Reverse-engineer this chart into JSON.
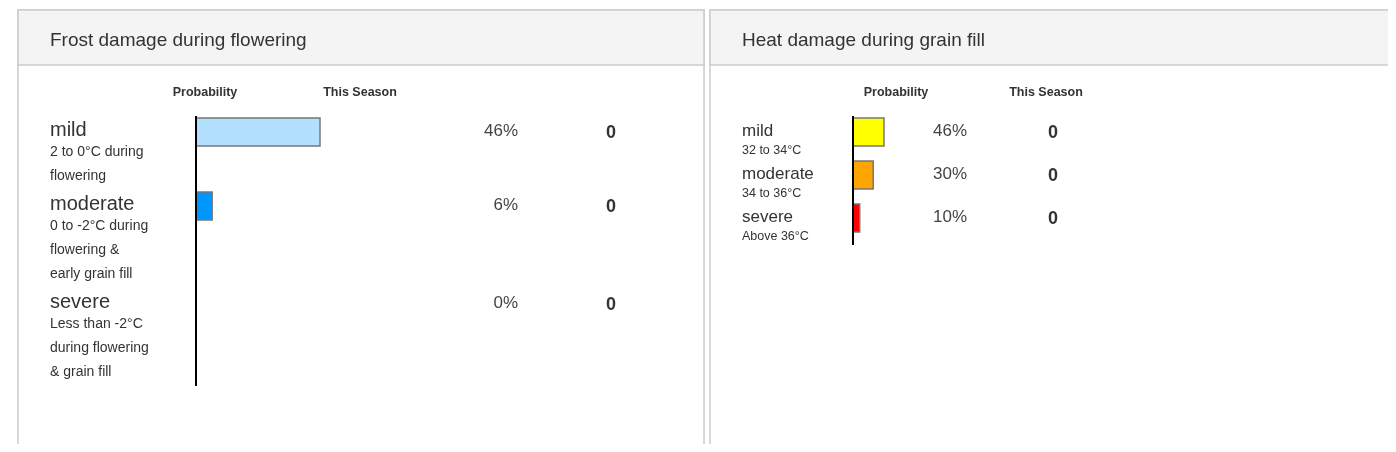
{
  "chart_data": [
    {
      "type": "bar",
      "orientation": "horizontal",
      "title": "Frost damage during flowering",
      "categories": [
        "mild\n2 to 0°C during flowering",
        "moderate\n0 to -2°C during flowering & early grain fill",
        "severe\nLess than -2°C during flowering & grain fill"
      ],
      "series": [
        {
          "name": "Probability",
          "colors": [
            "#b3e0ff",
            "#0096ff",
            "#0096ff"
          ],
          "values": [
            46,
            6,
            0
          ],
          "value_labels": [
            "46%",
            "6%",
            "0%"
          ]
        },
        {
          "name": "This Season",
          "color": "#333333",
          "values": [
            0,
            0,
            0
          ],
          "value_labels": [
            "0",
            "0",
            "0"
          ]
        }
      ]
    },
    {
      "type": "bar",
      "orientation": "horizontal",
      "title": "Heat damage during grain fill",
      "categories": [
        "mild\n32 to 34°C",
        "moderate\n34 to 36°C",
        "severe\nAbove 36°C"
      ],
      "series": [
        {
          "name": "Probability",
          "colors": [
            "#ffff00",
            "#ffa500",
            "#ff0000"
          ],
          "values": [
            46,
            30,
            10
          ],
          "value_labels": [
            "46%",
            "30%",
            "10%"
          ]
        },
        {
          "name": "This Season",
          "color": "#333333",
          "values": [
            0,
            0,
            0
          ],
          "value_labels": [
            "0",
            "0",
            "0"
          ]
        }
      ]
    }
  ]
}
